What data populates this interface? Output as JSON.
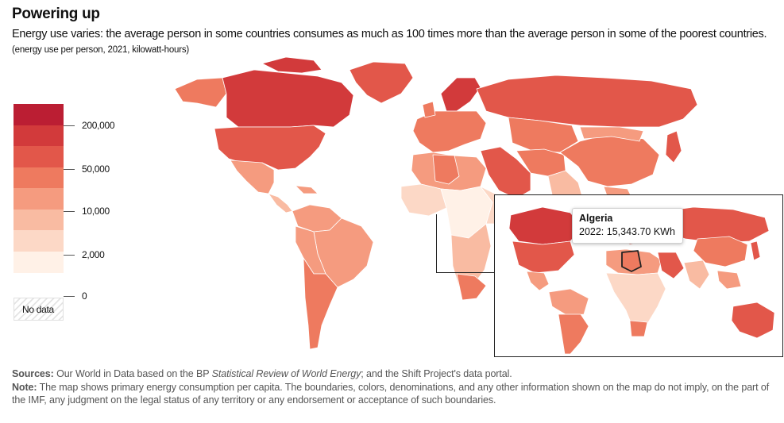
{
  "title": "Powering up",
  "subtitle": "Energy use varies: the average person in some countries consumes as much as 100 times more than the average person in some of the poorest countries.",
  "units": "(energy use per person, 2021, kilowatt-hours)",
  "legend": {
    "colors": [
      "#bb1e33",
      "#d23a3b",
      "#e2574a",
      "#ee7a5f",
      "#f59b7f",
      "#f9bba2",
      "#fcd8c6",
      "#fff1e7"
    ],
    "ticks": [
      "200,000",
      "50,000",
      "10,000",
      "2,000",
      "0"
    ],
    "no_data_label": "No data"
  },
  "tooltip": {
    "country": "Algeria",
    "value": "2022: 15,343.70 KWh"
  },
  "sources": {
    "sources_label": "Sources:",
    "sources_text_1": " Our World in Data based on the BP ",
    "sources_italic": "Statistical Review of World Energy",
    "sources_text_2": "; and the Shift Project's data portal.",
    "note_label": "Note:",
    "note_text": " The map shows primary energy consumption per capita. The boundaries, colors, denominations, and any other information shown on the map do not imply, on the part of the IMF, any judgment on the legal status of any territory or any endorsement or acceptance of such boundaries."
  }
}
